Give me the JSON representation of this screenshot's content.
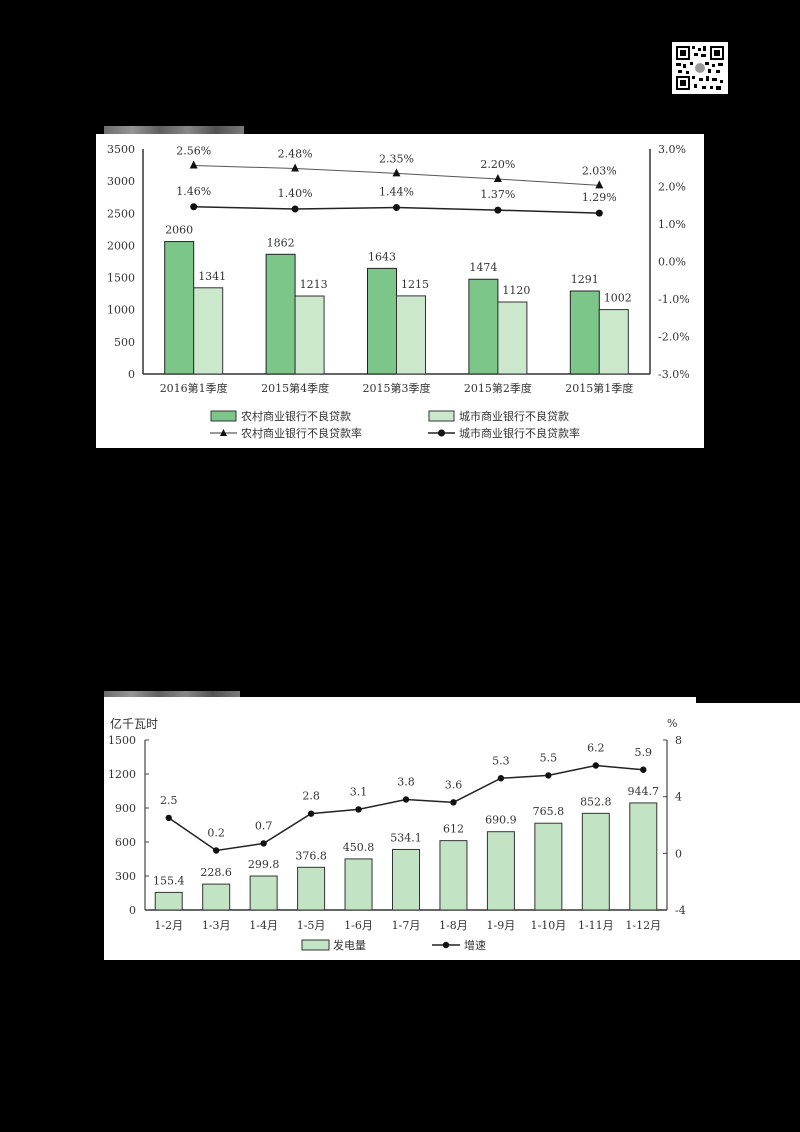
{
  "qr_code": {
    "icon": "qr-code-icon"
  },
  "chart_data": [
    {
      "type": "bar+line",
      "title": "",
      "categories": [
        "2016第1季度",
        "2015第4季度",
        "2015第3季度",
        "2015第2季度",
        "2015第1季度"
      ],
      "series": [
        {
          "name": "农村商业银行不良贷款",
          "kind": "bar",
          "axis": "left",
          "color": "#7dc68a",
          "values": [
            2060,
            1862,
            1643,
            1474,
            1291
          ]
        },
        {
          "name": "城市商业银行不良贷款",
          "kind": "bar",
          "axis": "left",
          "color": "#cbe8cd",
          "values": [
            1341,
            1213,
            1215,
            1120,
            1002
          ]
        },
        {
          "name": "农村商业银行不良贷款率",
          "kind": "line",
          "marker": "triangle",
          "axis": "right",
          "values": [
            2.56,
            2.48,
            2.35,
            2.2,
            2.03
          ],
          "labels": [
            "2.56%",
            "2.48%",
            "2.35%",
            "2.20%",
            "2.03%"
          ]
        },
        {
          "name": "城市商业银行不良贷款率",
          "kind": "line",
          "marker": "circle",
          "axis": "right",
          "values": [
            1.46,
            1.4,
            1.44,
            1.37,
            1.29
          ],
          "labels": [
            "1.46%",
            "1.40%",
            "1.44%",
            "1.37%",
            "1.29%"
          ]
        }
      ],
      "left_axis": {
        "ylim": [
          0,
          3500
        ],
        "ticks": [
          "0",
          "500",
          "1000",
          "1500",
          "2000",
          "2500",
          "3000",
          "3500"
        ]
      },
      "right_axis": {
        "ylim": [
          -3.0,
          3.0
        ],
        "ticks": [
          "-3.0%",
          "-2.0%",
          "-1.0%",
          "0.0%",
          "1.0%",
          "2.0%",
          "3.0%"
        ]
      },
      "legend": {
        "position": "bottom",
        "items": [
          "农村商业银行不良贷款",
          "城市商业银行不良贷款",
          "农村商业银行不良贷款率",
          "城市商业银行不良贷款率"
        ]
      },
      "grid": false
    },
    {
      "type": "bar+line",
      "title": "",
      "categories": [
        "1-2月",
        "1-3月",
        "1-4月",
        "1-5月",
        "1-6月",
        "1-7月",
        "1-8月",
        "1-9月",
        "1-10月",
        "1-11月",
        "1-12月"
      ],
      "series": [
        {
          "name": "发电量",
          "kind": "bar",
          "axis": "left",
          "color": "#c2e3c4",
          "values": [
            155.4,
            228.6,
            299.8,
            376.8,
            450.8,
            534.1,
            612,
            690.9,
            765.8,
            852.8,
            944.7
          ],
          "labels": [
            "155.4",
            "228.6",
            "299.8",
            "376.8",
            "450.8",
            "534.1",
            "612",
            "690.9",
            "765.8",
            "852.8",
            "944.7"
          ]
        },
        {
          "name": "增速",
          "kind": "line",
          "marker": "circle",
          "axis": "right",
          "values": [
            2.5,
            0.2,
            0.7,
            2.8,
            3.1,
            3.8,
            3.6,
            5.3,
            5.5,
            6.2,
            5.9
          ],
          "labels": [
            "2.5",
            "0.2",
            "0.7",
            "2.8",
            "3.1",
            "3.8",
            "3.6",
            "5.3",
            "5.5",
            "6.2",
            "5.9"
          ]
        }
      ],
      "ylabel": "亿千瓦时",
      "ylabel_right": "%",
      "left_axis": {
        "ylim": [
          0,
          1500
        ],
        "ticks": [
          "0",
          "300",
          "600",
          "900",
          "1200",
          "1500"
        ]
      },
      "right_axis": {
        "ylim": [
          -4,
          8
        ],
        "ticks": [
          "-4",
          "0",
          "4",
          "8"
        ]
      },
      "legend": {
        "position": "bottom",
        "items": [
          "发电量",
          "增速"
        ]
      },
      "grid": false
    }
  ]
}
